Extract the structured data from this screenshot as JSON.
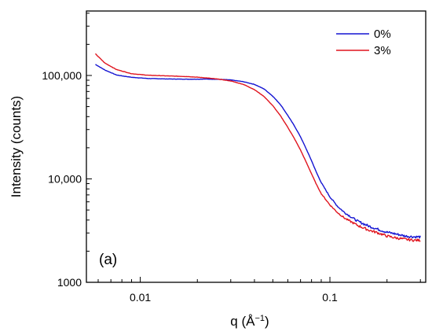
{
  "chart_data": {
    "type": "line",
    "xlabel": "q (Å",
    "xlabel_exponent": "−1",
    "xlabel_close": ")",
    "ylabel": "Intensity (counts)",
    "x_scale": "log",
    "y_scale": "log",
    "xlim": [
      0.0052,
      0.32
    ],
    "ylim": [
      1000,
      420000
    ],
    "x_ticks": [
      {
        "value": 0.01,
        "label": "0.01"
      },
      {
        "value": 0.1,
        "label": "0.1"
      }
    ],
    "y_ticks": [
      {
        "value": 1000,
        "label": "1000"
      },
      {
        "value": 10000,
        "label": "10,000"
      },
      {
        "value": 100000,
        "label": "100,000"
      }
    ],
    "panel_label": "(a)",
    "legend_position": "top-right",
    "grid": false,
    "series": [
      {
        "name": "0%",
        "color": "#1414d2",
        "x": [
          0.0058,
          0.0065,
          0.0075,
          0.009,
          0.011,
          0.014,
          0.018,
          0.022,
          0.026,
          0.03,
          0.035,
          0.04,
          0.045,
          0.05,
          0.055,
          0.06,
          0.065,
          0.07,
          0.075,
          0.08,
          0.085,
          0.09,
          0.1,
          0.11,
          0.12,
          0.14,
          0.16,
          0.18,
          0.2,
          0.22,
          0.25,
          0.28,
          0.3
        ],
        "y": [
          128000,
          113000,
          101000,
          96000,
          93500,
          92500,
          92000,
          92300,
          91800,
          90500,
          87000,
          82000,
          74000,
          63000,
          52000,
          41000,
          32500,
          25500,
          19500,
          15000,
          11500,
          9200,
          6700,
          5400,
          4700,
          3900,
          3500,
          3250,
          3050,
          2950,
          2800,
          2750,
          2750
        ]
      },
      {
        "name": "3%",
        "color": "#e0141e",
        "x": [
          0.0058,
          0.0065,
          0.0075,
          0.009,
          0.011,
          0.014,
          0.018,
          0.022,
          0.026,
          0.03,
          0.035,
          0.04,
          0.045,
          0.05,
          0.055,
          0.06,
          0.065,
          0.07,
          0.075,
          0.08,
          0.085,
          0.09,
          0.1,
          0.11,
          0.12,
          0.14,
          0.16,
          0.18,
          0.2,
          0.22,
          0.25,
          0.28,
          0.3
        ],
        "y": [
          162000,
          132000,
          114000,
          104000,
          100500,
          99000,
          97500,
          95000,
          92000,
          88500,
          82000,
          73000,
          62500,
          51000,
          40500,
          31500,
          24500,
          19000,
          14500,
          11200,
          8800,
          7200,
          5600,
          4700,
          4150,
          3550,
          3200,
          3000,
          2800,
          2700,
          2600,
          2550,
          2550
        ]
      }
    ]
  }
}
